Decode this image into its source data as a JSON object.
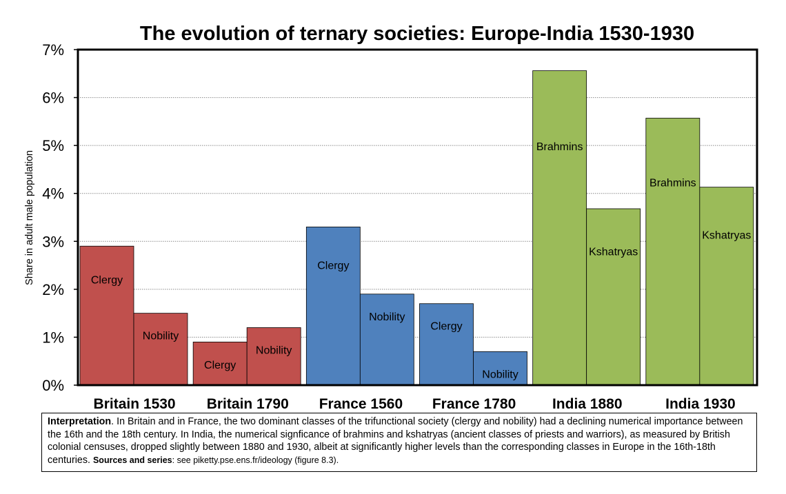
{
  "chart_data": {
    "type": "bar",
    "title": "The evolution of ternary societies: Europe-India 1530-1930",
    "ylabel": "Share in adult male population",
    "ylim": [
      0,
      0.07
    ],
    "yticks": [
      "0%",
      "1%",
      "2%",
      "3%",
      "4%",
      "5%",
      "6%",
      "7%"
    ],
    "grid": true,
    "colors": {
      "Britain": "#c0504d",
      "France": "#4f81bd",
      "India": "#9bbb59"
    },
    "groups": [
      {
        "label": "Britain 1530",
        "color_key": "Britain",
        "bars": [
          {
            "label": "Clergy",
            "value": 0.029
          },
          {
            "label": "Nobility",
            "value": 0.015
          }
        ]
      },
      {
        "label": "Britain 1790",
        "color_key": "Britain",
        "bars": [
          {
            "label": "Clergy",
            "value": 0.009
          },
          {
            "label": "Nobility",
            "value": 0.012
          }
        ]
      },
      {
        "label": "France 1560",
        "color_key": "France",
        "bars": [
          {
            "label": "Clergy",
            "value": 0.033
          },
          {
            "label": "Nobility",
            "value": 0.019
          }
        ]
      },
      {
        "label": "France 1780",
        "color_key": "France",
        "bars": [
          {
            "label": "Clergy",
            "value": 0.017
          },
          {
            "label": "Nobility",
            "value": 0.007
          }
        ]
      },
      {
        "label": "India 1880",
        "color_key": "India",
        "bars": [
          {
            "label": "Brahmins",
            "value": 0.0656
          },
          {
            "label": "Kshatryas",
            "value": 0.0368
          }
        ]
      },
      {
        "label": "India 1930",
        "color_key": "India",
        "bars": [
          {
            "label": "Brahmins",
            "value": 0.0557
          },
          {
            "label": "Kshatryas",
            "value": 0.0413
          }
        ]
      }
    ]
  },
  "note": {
    "lead": "Interpretation",
    "body": ". In Britain and in France, the two dominant classes of the trifunctional society (clergy and nobility) had a declining numerical importance between the 16th and the 18th century. In India, the numerical signficance of brahmins and kshatryas (ancient classes of priests and warriors), as measured by British colonial censuses, dropped slightly between 1880 and 1930, albeit at significantly higher levels than the corresponding classes in Europe in the 16th-18th centuries.",
    "sources_label": "Sources and series",
    "sources_text": ": see piketty.pse.ens.fr/ideology (figure 8.3)."
  }
}
